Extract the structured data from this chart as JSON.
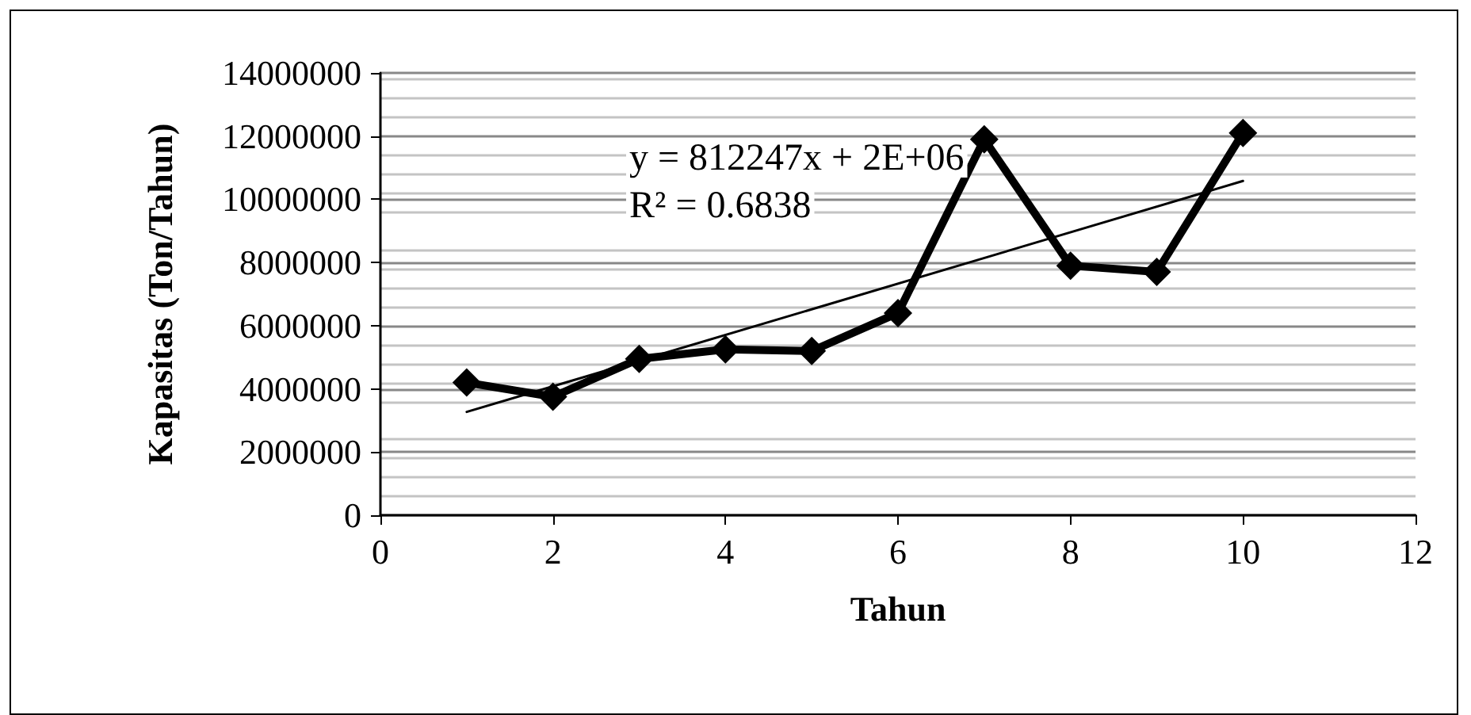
{
  "chart_data": {
    "type": "line",
    "xlabel": "Tahun",
    "ylabel": "Kapasitas (Ton/Tahun)",
    "x": [
      1,
      2,
      3,
      4,
      5,
      6,
      7,
      8,
      9,
      10
    ],
    "series": [
      {
        "color": "#000000",
        "values": [
          4200000,
          3750000,
          4950000,
          5250000,
          5200000,
          6400000,
          11900000,
          7900000,
          7700000,
          12100000
        ],
        "marker": "diamond"
      },
      {
        "type": "line",
        "color": "#000000",
        "x": [
          1,
          10
        ],
        "values": [
          3270000,
          10580000
        ],
        "marker": "none"
      }
    ],
    "annotations": [
      "y = 812247x + 2E+06",
      "R² = 0.6838"
    ],
    "xlim": [
      0,
      12
    ],
    "xticks": [
      0,
      2,
      4,
      6,
      8,
      10,
      12
    ],
    "ylim": [
      0,
      14000000
    ],
    "yticks": [
      0,
      2000000,
      4000000,
      6000000,
      8000000,
      10000000,
      12000000,
      14000000
    ],
    "grid": "y"
  }
}
